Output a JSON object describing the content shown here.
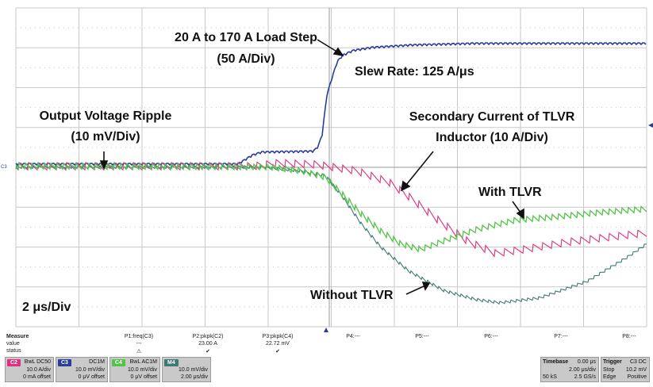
{
  "annotations": {
    "load_step": "20 A to 170 A Load Step",
    "load_step_scale": "(50 A/Div)",
    "slew_rate": "Slew Rate: 125 A/μs",
    "ripple": "Output Voltage Ripple",
    "ripple_scale": "(10 mV/Div)",
    "secondary_line1": "Secondary Current of TLVR",
    "secondary_line2": "Inductor (10 A/Div)",
    "with_tlvr": "With TLVR",
    "without_tlvr": "Without TLVR",
    "time_scale": "2 μs/Div"
  },
  "colors": {
    "load_current": "#2b3d9c",
    "secondary_current": "#e0307e",
    "with_tlvr": "#52c447",
    "without_tlvr": "#3e7a73",
    "c2": "#e0307e",
    "c3": "#2b3d9c",
    "c4": "#52c447",
    "m4": "#3e7a73"
  },
  "measure": {
    "labels": [
      "Measure",
      "value",
      "status"
    ],
    "params": [
      {
        "name": "P1:freq(C3)",
        "value": "---",
        "status": "⚠"
      },
      {
        "name": "P2:pkpk(C2)",
        "value": "23.00 A",
        "status": "✔"
      },
      {
        "name": "P3:pkpk(C4)",
        "value": "22.72 mV",
        "status": "✔"
      },
      {
        "name": "P4:---",
        "value": "",
        "status": ""
      },
      {
        "name": "P5:---",
        "value": "",
        "status": ""
      },
      {
        "name": "P6:---",
        "value": "",
        "status": ""
      },
      {
        "name": "P7:---",
        "value": "",
        "status": ""
      },
      {
        "name": "P8:---",
        "value": "",
        "status": ""
      }
    ]
  },
  "channels": [
    {
      "tag": "C2",
      "top": "BwL DC50",
      "line2": "10.0 A/div",
      "line3": "0 mA offset"
    },
    {
      "tag": "C3",
      "top": "DC1M",
      "line2": "10.0 mV/div",
      "line3": "0 μV offset"
    },
    {
      "tag": "C4",
      "top": "BwL AC1M",
      "line2": "10.0 mV/div",
      "line3": "0 μV offset"
    },
    {
      "tag": "M4",
      "top": "",
      "line2": "10.0 mV/div",
      "line3": "2.00 μs/div"
    }
  ],
  "timebase": {
    "label": "Timebase",
    "delay": "0.00 μs",
    "per_div": "2.00 μs/div",
    "samples": "50 kS",
    "rate": "2.5 GS/s"
  },
  "trigger": {
    "label": "Trigger",
    "source": "C3 DC",
    "mode": "Stop",
    "level": "10.2 mV",
    "type": "Edge",
    "slope": "Positive"
  },
  "ground_marker": "C3"
}
